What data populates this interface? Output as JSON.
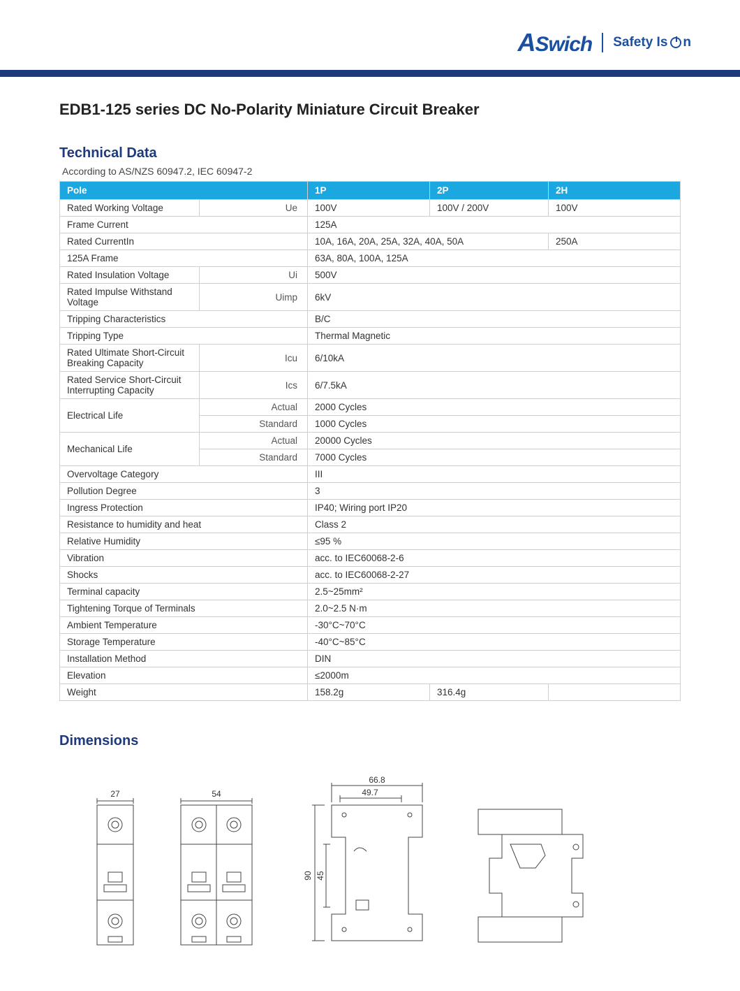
{
  "brand": {
    "logo_text_1": "A",
    "logo_text_2": "Swich",
    "tagline_prefix": "Safety Is ",
    "tagline_on": "n"
  },
  "colors": {
    "brand_blue": "#1b4fa0",
    "bar_blue": "#1e3a7b",
    "header_cell_blue": "#1ba8e0",
    "border_gray": "#cfcfcf",
    "text_dark": "#333333"
  },
  "product_title": "EDB1-125 series DC No-Polarity  Miniature Circuit Breaker",
  "section_tech": "Technical Data",
  "standard_note": "According to AS/NZS 60947.2, IEC 60947-2",
  "table": {
    "header": [
      "Pole",
      "1P",
      "2P",
      "2H"
    ],
    "rows": [
      {
        "label": "Rated Working Voltage",
        "sym": "Ue",
        "cells": [
          "100V",
          "100V / 200V",
          "100V"
        ]
      },
      {
        "label": "Frame Current",
        "sym": "",
        "cells_merged": "125A"
      },
      {
        "label": "Rated CurrentIn",
        "sym": "",
        "cells": [
          {
            "span": 2,
            "v": "10A, 16A, 20A, 25A, 32A, 40A, 50A"
          },
          "250A"
        ]
      },
      {
        "label": "125A Frame",
        "sym": "",
        "cells_merged": "63A, 80A, 100A, 125A"
      },
      {
        "label": "Rated Insulation Voltage",
        "sym": "Ui",
        "cells_merged": "500V"
      },
      {
        "label": "Rated Impulse Withstand Voltage",
        "sym": "Uimp",
        "cells_merged": "6kV"
      },
      {
        "label": "Tripping Characteristics",
        "sym": "",
        "cells_merged": "B/C"
      },
      {
        "label": "Tripping Type",
        "sym": "",
        "cells_merged": "Thermal Magnetic"
      },
      {
        "label": "Rated Ultimate Short-Circuit Breaking Capacity",
        "sym": "Icu",
        "cells_merged": "6/10kA"
      },
      {
        "label": "Rated Service Short-Circuit Interrupting Capacity",
        "sym": "Ics",
        "cells_merged": "6/7.5kA"
      },
      {
        "label": "Electrical Life",
        "sub": "Actual",
        "rowspan": 2,
        "cells_merged": "2000 Cycles"
      },
      {
        "sub_only": "Standard",
        "cells_merged": "1000 Cycles"
      },
      {
        "label": "Mechanical Life",
        "sub": "Actual",
        "rowspan": 2,
        "cells_merged": "20000 Cycles"
      },
      {
        "sub_only": "Standard",
        "cells_merged": "7000 Cycles"
      },
      {
        "label": "Overvoltage Category",
        "sym": "",
        "cells_merged": "III"
      },
      {
        "label": "Pollution Degree",
        "sym": "",
        "cells_merged": "3"
      },
      {
        "label": "Ingress Protection",
        "sym": "",
        "cells_merged": "IP40; Wiring port IP20"
      },
      {
        "label": "Resistance to humidity and heat",
        "sym": "",
        "cells_merged": "Class 2"
      },
      {
        "label": "Relative Humidity",
        "sym": "",
        "cells_merged": "≤95 %"
      },
      {
        "label": "Vibration",
        "sym": "",
        "cells_merged": "acc. to IEC60068-2-6"
      },
      {
        "label": "Shocks",
        "sym": "",
        "cells_merged": "acc. to IEC60068-2-27"
      },
      {
        "label": "Terminal capacity",
        "sym": "",
        "cells_merged": "2.5~25mm²"
      },
      {
        "label": "Tightening Torque of Terminals",
        "sym": "",
        "cells_merged": "2.0~2.5 N·m"
      },
      {
        "label": "Ambient Temperature",
        "sym": "",
        "cells_merged": "-30°C~70°C"
      },
      {
        "label": "Storage Temperature",
        "sym": "",
        "cells_merged": "-40°C~85°C"
      },
      {
        "label": "Installation Method",
        "sym": "",
        "cells_merged": "DIN"
      },
      {
        "label": "Elevation",
        "sym": "",
        "cells_merged": "≤2000m"
      },
      {
        "label": "Weight",
        "sym": "",
        "cells": [
          "158.2g",
          "316.4g",
          ""
        ]
      }
    ]
  },
  "section_dims": "Dimensions",
  "dimensions": {
    "front_1p_width": "27",
    "front_2p_width": "54",
    "side_width_outer": "66.8",
    "side_width_inner": "49.7",
    "side_height_outer": "90",
    "side_height_inner": "45",
    "stroke": "#444444",
    "fill": "#ffffff"
  }
}
